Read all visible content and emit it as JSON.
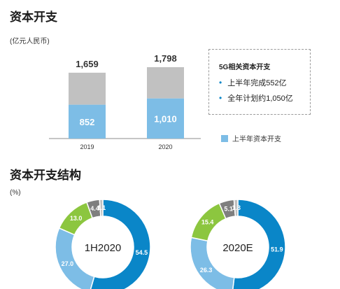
{
  "sections": {
    "capex_title": "资本开支",
    "capex_unit": "(亿元人民币)",
    "structure_title": "资本开支结构",
    "structure_unit": "(%)"
  },
  "callout": {
    "title": "5G相关资本开支",
    "items": [
      "上半年完成552亿",
      "全年计划约1,050亿"
    ]
  },
  "legend": {
    "label": "上半年资本开支"
  },
  "colors": {
    "total_bar": "#c1c1c1",
    "h1_bar": "#7dbde6",
    "donut_dark_blue": "#0a86c8",
    "donut_light_blue": "#7dbde6",
    "donut_green": "#8cc63f",
    "donut_gray": "#7f7f7f",
    "donut_light_gray": "#bfbfbf"
  },
  "chart_data": [
    {
      "type": "bar",
      "categories": [
        "2019",
        "2020"
      ],
      "series": [
        {
          "name": "上半年资本开支",
          "values": [
            852,
            1010
          ],
          "labels": [
            "852",
            "1,010"
          ]
        }
      ],
      "totals": [
        1659,
        1798
      ],
      "total_labels": [
        "1,659",
        "1,798"
      ],
      "ylim": [
        0,
        1798
      ]
    },
    {
      "type": "pie",
      "center_label": "1H2020",
      "values": [
        54.5,
        27.0,
        13.0,
        4.4,
        1.1
      ],
      "labels": [
        "54.5",
        "27.0",
        "13.0",
        "4.4",
        "1.1"
      ],
      "colors": [
        "#0a86c8",
        "#7dbde6",
        "#8cc63f",
        "#7f7f7f",
        "#bfbfbf"
      ]
    },
    {
      "type": "pie",
      "center_label": "2020E",
      "values": [
        51.9,
        26.3,
        15.4,
        5.1,
        1.3
      ],
      "labels": [
        "51.9",
        "26.3",
        "15.4",
        "5.1",
        "1.3"
      ],
      "colors": [
        "#0a86c8",
        "#7dbde6",
        "#8cc63f",
        "#7f7f7f",
        "#bfbfbf"
      ]
    }
  ]
}
